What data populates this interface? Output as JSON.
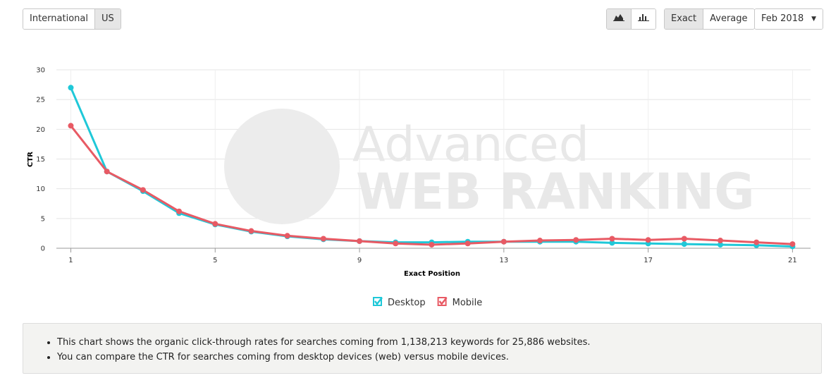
{
  "controls": {
    "region": [
      "International",
      "US"
    ],
    "mode": [
      "Exact",
      "Average"
    ],
    "month": "Feb 2018"
  },
  "watermark": {
    "line1": "Advanced",
    "line2": "WEB RANKING"
  },
  "chart_data": {
    "type": "line",
    "x_label": "Exact Position",
    "y_label": "CTR",
    "x": [
      1,
      2,
      3,
      4,
      5,
      6,
      7,
      8,
      9,
      10,
      11,
      12,
      13,
      14,
      15,
      16,
      17,
      18,
      19,
      20,
      21
    ],
    "series": [
      {
        "name": "Desktop",
        "color": "#1fc8d8",
        "values": [
          27,
          12.9,
          9.6,
          5.9,
          4.0,
          2.8,
          2.0,
          1.5,
          1.2,
          1.0,
          1.0,
          1.1,
          1.1,
          1.1,
          1.1,
          0.9,
          0.8,
          0.7,
          0.6,
          0.5,
          0.3
        ]
      },
      {
        "name": "Mobile",
        "color": "#e85a64",
        "values": [
          20.6,
          12.9,
          9.8,
          6.2,
          4.1,
          2.9,
          2.1,
          1.6,
          1.2,
          0.8,
          0.6,
          0.8,
          1.1,
          1.3,
          1.4,
          1.6,
          1.4,
          1.6,
          1.3,
          1.0,
          0.7
        ]
      }
    ],
    "xlim": [
      0.6,
      21.5
    ],
    "xticks": [
      1,
      5,
      9,
      13,
      17,
      21
    ],
    "ylim": [
      0,
      30
    ],
    "yticks": [
      0,
      5,
      10,
      15,
      20,
      25,
      30
    ],
    "grid": true
  },
  "note": {
    "items": [
      "This chart shows the organic click-through rates for searches coming from 1,138,213 keywords for 25,886 websites.",
      "You can compare the CTR for searches coming from desktop devices (web) versus mobile devices."
    ]
  }
}
